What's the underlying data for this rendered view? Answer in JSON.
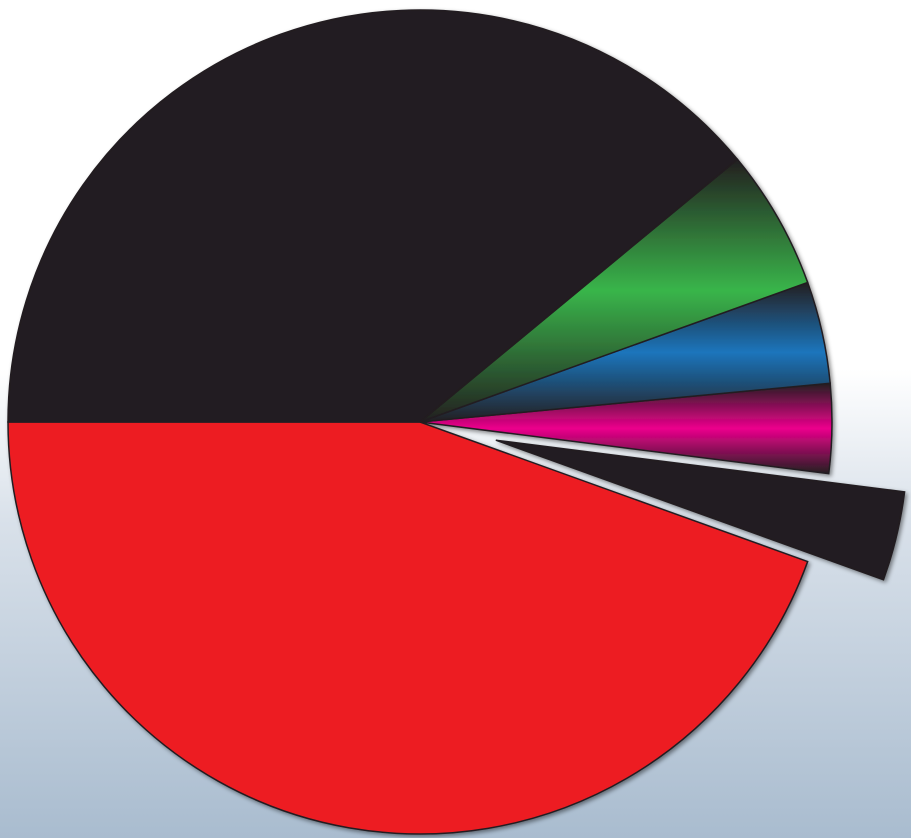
{
  "chart_data": {
    "type": "pie",
    "title": "",
    "labels": [],
    "slices": [
      {
        "value": 44.5,
        "color": "#ed1c24",
        "gradient": false,
        "exploded": false
      },
      {
        "value": 3.5,
        "color": "#231f20",
        "gradient": false,
        "exploded": true
      },
      {
        "value": 3.5,
        "color": "#ec008c",
        "gradient": true,
        "exploded": false
      },
      {
        "value": 4.0,
        "color": "#1c75bc",
        "gradient": true,
        "exploded": false
      },
      {
        "value": 5.5,
        "color": "#39b54a",
        "gradient": true,
        "exploded": false
      },
      {
        "value": 39.0,
        "color": "#231f20",
        "gradient": false,
        "exploded": false
      }
    ],
    "start_angle_deg": 180,
    "direction": "counterclockwise",
    "legend": "none",
    "background_gradient": [
      "#ffffff",
      "#a9bccf"
    ]
  }
}
